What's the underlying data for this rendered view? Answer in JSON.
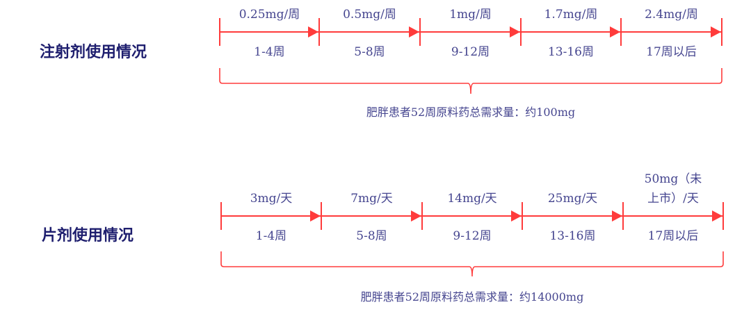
{
  "colors": {
    "line": "#ff3b3b",
    "text": "#45458f",
    "title": "#1e1e6e"
  },
  "sections": [
    {
      "title": "注射剂使用情况",
      "doses": [
        [
          "0.25mg/周"
        ],
        [
          "0.5mg/周"
        ],
        [
          "1mg/周"
        ],
        [
          "1.7mg/周"
        ],
        [
          "2.4mg/周"
        ]
      ],
      "periods": [
        "1-4周",
        "5-8周",
        "9-12周",
        "13-16周",
        "17周以后"
      ],
      "summary": "肥胖患者52周原料药总需求量：约100mg"
    },
    {
      "title": "片剂使用情况",
      "doses": [
        [
          "3mg/天"
        ],
        [
          "7mg/天"
        ],
        [
          "14mg/天"
        ],
        [
          "25mg/天"
        ],
        [
          "50mg（未",
          "上市）/天"
        ]
      ],
      "periods": [
        "1-4周",
        "5-8周",
        "9-12周",
        "13-16周",
        "17周以后"
      ],
      "summary": "肥胖患者52周原料药总需求量：约14000mg"
    }
  ]
}
